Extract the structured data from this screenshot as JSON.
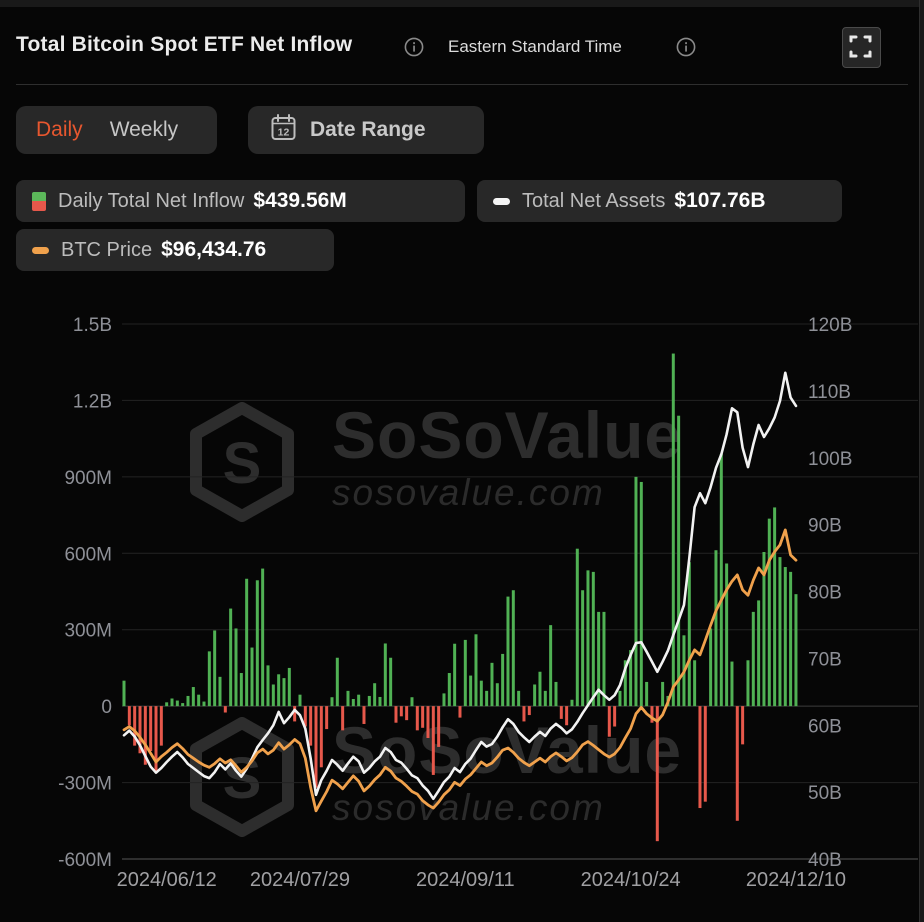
{
  "header": {
    "title": "Total Bitcoin Spot ETF Net Inflow",
    "timezone": "Eastern Standard Time"
  },
  "toolbar": {
    "daily_label": "Daily",
    "weekly_label": "Weekly",
    "date_range_label": "Date Range",
    "calendar_icon_day": "12",
    "active_tab": "Daily"
  },
  "legend": {
    "items": [
      {
        "label": "Daily Total Net Inflow",
        "value": "$439.56M",
        "icon": "green-red-split-square"
      },
      {
        "label": "Total Net Assets",
        "value": "$107.76B",
        "icon": "white-dash"
      },
      {
        "label": "BTC Price",
        "value": "$96,434.76",
        "icon": "orange-dash"
      }
    ]
  },
  "watermark": {
    "brand": "SoSoValue",
    "domain": "sosovalue.com"
  },
  "colors": {
    "accent_daily": "#e7572f",
    "bar_positive": "#50b154",
    "bar_negative": "#e6584b",
    "net_assets_line": "#f2f2f2",
    "btc_price_line": "#f0a14c",
    "grid": "#232323",
    "zero_line": "#3d3d3d",
    "axis_line": "#565656",
    "axis_label": "#8e9097",
    "x_label": "#a0a0a3",
    "pill_bg": "#282828",
    "background": "#060606"
  },
  "chart_data": {
    "type": "bar",
    "subtype": "bar+line combo, dual y-axis",
    "title": "Total Bitcoin Spot ETF Net Inflow",
    "x_tick_labels": [
      "2024/06/12",
      "2024/07/29",
      "2024/09/11",
      "2024/10/24",
      "2024/12/10"
    ],
    "x_tick_indices": [
      8,
      33,
      64,
      95,
      126
    ],
    "left_axis": {
      "tick_labels": [
        "1.5B",
        "1.2B",
        "900M",
        "600M",
        "300M",
        "0",
        "-300M",
        "-600M"
      ],
      "min_M": -600,
      "max_M": 1500,
      "grid": true
    },
    "right_axis": {
      "tick_labels": [
        "120B",
        "110B",
        "100B",
        "90B",
        "80B",
        "70B",
        "60B",
        "50B",
        "40B"
      ],
      "min_B": 40,
      "max_B": 120
    },
    "btc_hidden_axis": {
      "min_K": 40.7,
      "max_K": 140.5
    },
    "legend_position": "top-left",
    "series": [
      {
        "name": "Daily Total Net Inflow",
        "type": "bar",
        "axis": "left",
        "unit": "M USD",
        "values": [
          100,
          -75,
          -155,
          -185,
          -230,
          -176,
          -263,
          -155,
          15,
          30,
          22,
          12,
          40,
          75,
          45,
          18,
          215,
          297,
          115,
          -25,
          383,
          305,
          130,
          500,
          230,
          494,
          540,
          160,
          85,
          125,
          110,
          150,
          -60,
          45,
          -80,
          -155,
          -320,
          -240,
          -90,
          35,
          190,
          -95,
          60,
          28,
          45,
          -70,
          40,
          90,
          36,
          246,
          190,
          -65,
          -40,
          -55,
          35,
          -95,
          -85,
          -125,
          -270,
          -160,
          50,
          130,
          245,
          -45,
          260,
          120,
          282,
          100,
          60,
          170,
          90,
          205,
          430,
          455,
          60,
          -60,
          -35,
          85,
          135,
          60,
          318,
          95,
          -50,
          -75,
          25,
          618,
          455,
          533,
          527,
          370,
          370,
          -120,
          -80,
          60,
          180,
          220,
          900,
          880,
          95,
          -65,
          -530,
          95,
          40,
          1384,
          1140,
          278,
          565,
          180,
          -400,
          -375,
          305,
          612,
          990,
          560,
          175,
          -450,
          -150,
          180,
          370,
          415,
          605,
          736,
          780,
          585,
          546,
          527,
          439.56
        ]
      },
      {
        "name": "Total Net Assets",
        "type": "line",
        "axis": "right",
        "unit": "B USD",
        "values": [
          58.5,
          59.2,
          58.3,
          57.0,
          55.4,
          53.8,
          52.9,
          53.6,
          54.5,
          55.3,
          56.0,
          55.2,
          54.2,
          53.6,
          53.0,
          52.4,
          52.1,
          53.0,
          54.2,
          53.4,
          54.3,
          53.2,
          52.3,
          53.5,
          55.0,
          56.7,
          57.8,
          58.8,
          60.0,
          62.0,
          60.3,
          61.2,
          62.3,
          61.5,
          59.5,
          55.0,
          49.6,
          51.8,
          53.2,
          54.8,
          54.1,
          53.2,
          54.3,
          55.3,
          54.6,
          52.9,
          53.6,
          54.6,
          55.3,
          56.6,
          56.0,
          54.8,
          54.4,
          53.5,
          52.5,
          52.1,
          51.0,
          50.2,
          49.0,
          50.2,
          51.5,
          52.3,
          53.6,
          53.0,
          54.2,
          55.0,
          56.3,
          57.5,
          56.8,
          57.2,
          58.3,
          59.7,
          60.9,
          60.2,
          59.0,
          58.2,
          57.5,
          58.3,
          59.0,
          58.4,
          59.5,
          60.2,
          59.6,
          58.8,
          59.4,
          60.5,
          61.8,
          63.0,
          64.2,
          65.3,
          64.5,
          63.8,
          64.5,
          66.0,
          68.5,
          70.5,
          72.3,
          72.4,
          71.0,
          69.5,
          68.0,
          69.5,
          71.2,
          73.5,
          75.7,
          78.0,
          85.0,
          92.6,
          94.7,
          93.2,
          95.6,
          98.5,
          100.5,
          103.5,
          107.4,
          106.8,
          101.5,
          98.6,
          102.0,
          104.9,
          103.1,
          104.4,
          106.0,
          108.5,
          112.7,
          109.0,
          107.76
        ]
      },
      {
        "name": "BTC Price",
        "type": "line",
        "axis": "hidden",
        "unit": "K USD",
        "values": [
          64.8,
          65.4,
          64.6,
          63.4,
          62.0,
          60.4,
          58.8,
          59.8,
          60.6,
          61.5,
          62.2,
          61.3,
          60.2,
          59.5,
          58.8,
          58.2,
          57.8,
          58.5,
          59.4,
          58.6,
          59.2,
          58.1,
          56.9,
          57.8,
          59.0,
          60.5,
          61.2,
          60.3,
          61.0,
          62.4,
          61.2,
          62.0,
          63.0,
          62.2,
          59.5,
          54.0,
          49.7,
          51.5,
          53.3,
          55.4,
          54.7,
          53.8,
          55.0,
          56.2,
          55.2,
          53.4,
          54.3,
          55.5,
          56.4,
          57.8,
          57.1,
          55.8,
          55.2,
          54.3,
          53.3,
          52.8,
          51.6,
          50.8,
          50.2,
          51.3,
          52.7,
          53.6,
          55.0,
          54.4,
          55.6,
          56.4,
          57.6,
          58.8,
          58.1,
          58.6,
          59.7,
          61.0,
          61.4,
          60.6,
          59.5,
          58.7,
          58.1,
          58.8,
          59.5,
          58.8,
          59.8,
          60.5,
          59.8,
          59.0,
          59.6,
          60.7,
          62.0,
          62.6,
          61.9,
          61.1,
          60.3,
          59.7,
          60.3,
          61.5,
          63.3,
          65.0,
          67.8,
          69.0,
          67.8,
          67.0,
          66.4,
          67.6,
          70.0,
          72.8,
          74.1,
          75.6,
          77.8,
          79.7,
          78.8,
          81.5,
          84.3,
          87.0,
          89.0,
          90.9,
          92.5,
          93.7,
          90.9,
          89.9,
          92.7,
          95.0,
          93.7,
          96.4,
          98.0,
          99.3,
          102.1,
          97.4,
          96.43
        ]
      }
    ]
  }
}
